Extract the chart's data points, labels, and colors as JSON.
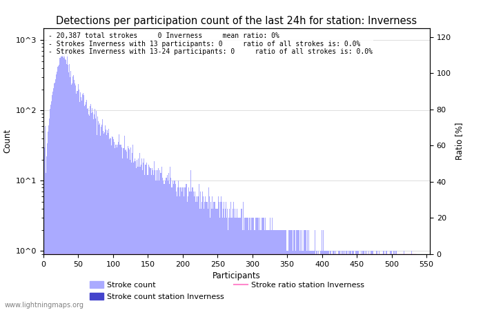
{
  "title": "Detections per participation count of the last 24h for station: Inverness",
  "xlabel": "Participants",
  "ylabel_left": "Count",
  "ylabel_right": "Ratio [%]",
  "annotation_lines": [
    "- 20,387 total strokes     0 Inverness     mean ratio: 0%",
    "- Strokes Inverness with 13 participants: 0     ratio of all strokes is: 0.0%",
    "- Strokes Inverness with 13-24 participants: 0     ratio of all strokes is: 0.0%"
  ],
  "bar_color": "#aaaaff",
  "station_bar_color": "#4444cc",
  "ratio_line_color": "#ff88cc",
  "legend_entries": [
    "Stroke count",
    "Stroke count station Inverness",
    "Stroke ratio station Inverness"
  ],
  "watermark": "www.lightningmaps.org",
  "xlim": [
    0,
    555
  ],
  "right_ylim": [
    0,
    125
  ],
  "right_yticks": [
    0,
    20,
    40,
    60,
    80,
    100,
    120
  ],
  "background_color": "#ffffff",
  "grid_color": "#dddddd",
  "annotation_fontsize": 7.0,
  "title_fontsize": 10.5
}
